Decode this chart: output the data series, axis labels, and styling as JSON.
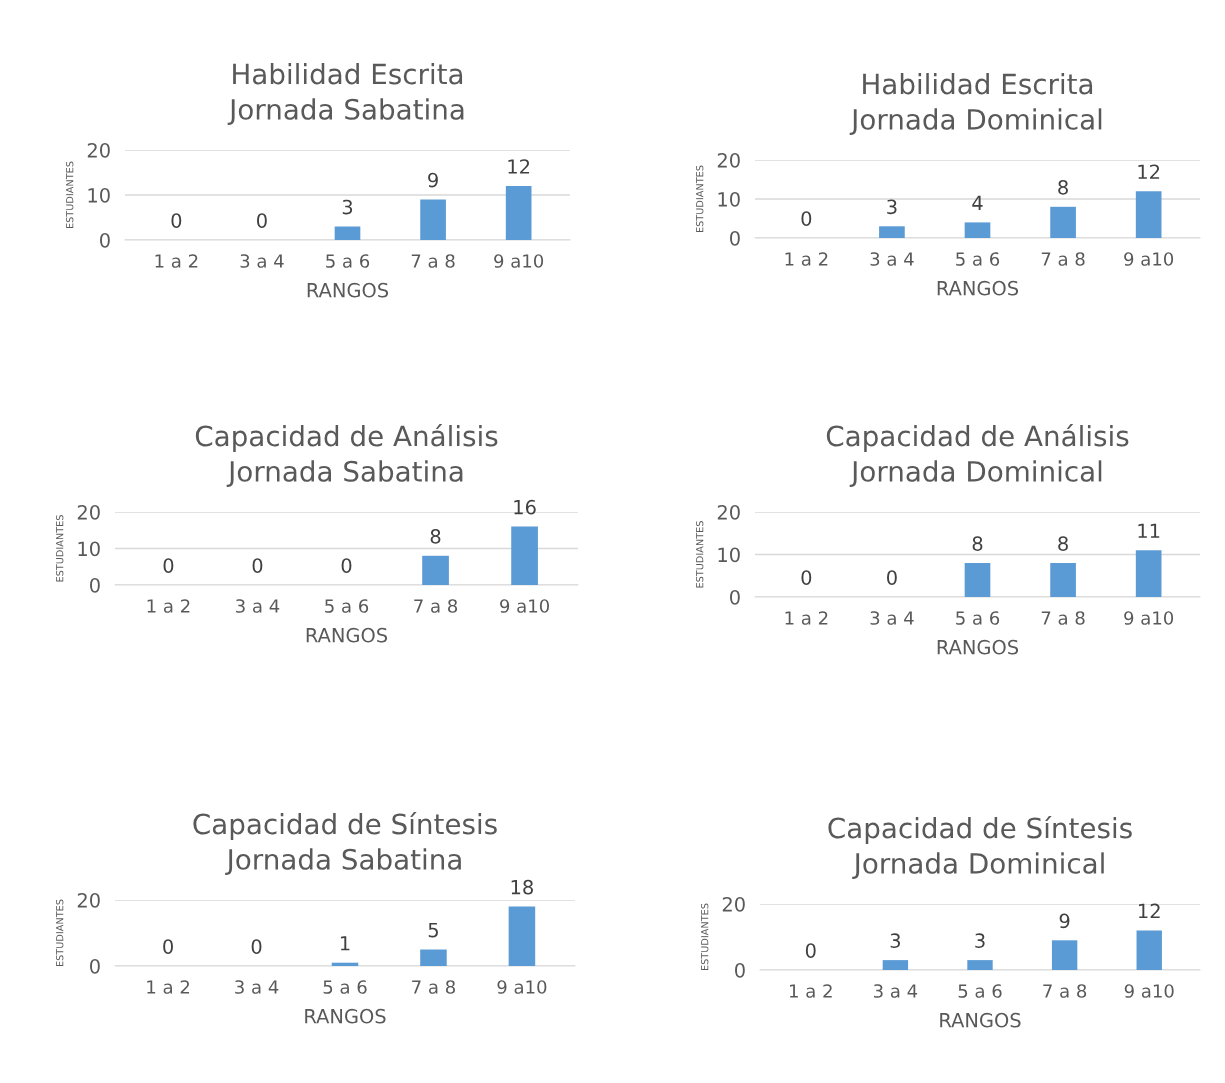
{
  "chart_data": [
    {
      "type": "bar",
      "title": "Habilidad Escrita\nJornada Sabatina",
      "xlabel": "RANGOS",
      "ylabel": "ESTUDIANTES",
      "categories": [
        "1 a 2",
        "3 a 4",
        "5 a 6",
        "7 a 8",
        "9 a10"
      ],
      "values": [
        0,
        0,
        3,
        9,
        12
      ],
      "color": "#5b9bd5",
      "ylim": [
        0,
        20
      ],
      "yticks": [
        0,
        10,
        20
      ],
      "grid": "y",
      "data_labels": true
    },
    {
      "type": "bar",
      "title": "Habilidad Escrita\nJornada Dominical",
      "xlabel": "RANGOS",
      "ylabel": "ESTUDIANTES",
      "categories": [
        "1 a 2",
        "3 a 4",
        "5 a 6",
        "7 a 8",
        "9 a10"
      ],
      "values": [
        0,
        3,
        4,
        8,
        12
      ],
      "color": "#5b9bd5",
      "ylim": [
        0,
        20
      ],
      "yticks": [
        0,
        10,
        20
      ],
      "grid": "y",
      "data_labels": true
    },
    {
      "type": "bar",
      "title": "Capacidad de Análisis\nJornada Sabatina",
      "xlabel": "RANGOS",
      "ylabel": "ESTUDIANTES",
      "categories": [
        "1 a 2",
        "3 a 4",
        "5 a 6",
        "7 a 8",
        "9 a10"
      ],
      "values": [
        0,
        0,
        0,
        8,
        16
      ],
      "color": "#5b9bd5",
      "ylim": [
        0,
        20
      ],
      "yticks": [
        0,
        10,
        20
      ],
      "grid": "y",
      "data_labels": true
    },
    {
      "type": "bar",
      "title": "Capacidad de Análisis\nJornada Dominical",
      "xlabel": "RANGOS",
      "ylabel": "ESTUDIANTES",
      "categories": [
        "1 a 2",
        "3 a 4",
        "5 a 6",
        "7 a 8",
        "9 a10"
      ],
      "values": [
        0,
        0,
        8,
        8,
        11
      ],
      "color": "#5b9bd5",
      "ylim": [
        0,
        20
      ],
      "yticks": [
        0,
        10,
        20
      ],
      "grid": "y",
      "data_labels": true
    },
    {
      "type": "bar",
      "title": "Capacidad de Síntesis\nJornada Sabatina",
      "xlabel": "RANGOS",
      "ylabel": "ESTUDIANTES",
      "categories": [
        "1 a 2",
        "3 a 4",
        "5 a 6",
        "7 a 8",
        "9 a10"
      ],
      "values": [
        0,
        0,
        1,
        5,
        18
      ],
      "color": "#5b9bd5",
      "ylim": [
        0,
        20
      ],
      "yticks": [
        0,
        20
      ],
      "grid": "y",
      "data_labels": true
    },
    {
      "type": "bar",
      "title": "Capacidad de Síntesis\nJornada Dominical",
      "xlabel": "RANGOS",
      "ylabel": "ESTUDIANTES",
      "categories": [
        "1 a 2",
        "3 a 4",
        "5 a 6",
        "7 a 8",
        "9 a10"
      ],
      "values": [
        0,
        3,
        3,
        9,
        12
      ],
      "color": "#5b9bd5",
      "ylim": [
        0,
        20
      ],
      "yticks": [
        0,
        20
      ],
      "grid": "y",
      "data_labels": true
    }
  ]
}
